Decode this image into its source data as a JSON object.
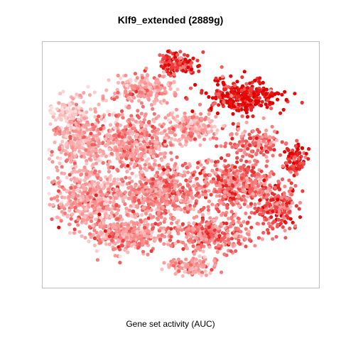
{
  "chart_data": {
    "type": "scatter",
    "title": "Klf9_extended (2889g)",
    "xlabel": "Gene set activity (AUC)",
    "ylabel": "",
    "grid": false,
    "legend": "none",
    "color_scale": {
      "low": "#fde0e0",
      "mid": "#fa8c8c",
      "high": "#e00000"
    },
    "axes_ticks": "none"
  }
}
